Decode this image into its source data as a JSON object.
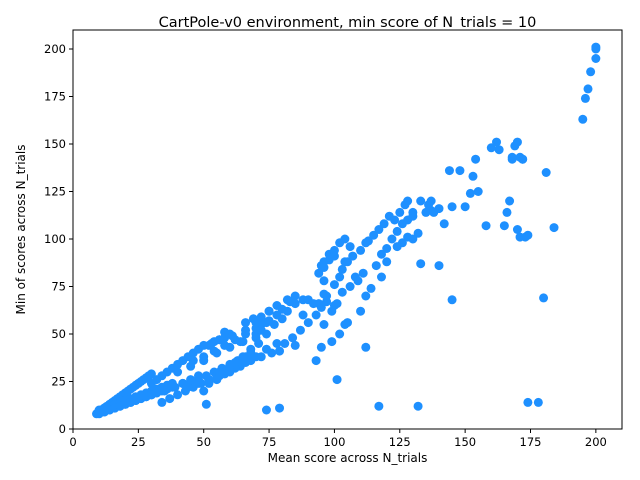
{
  "chart_data": {
    "type": "scatter",
    "title": "CartPole-v0 environment, min score of N_trials = 10",
    "xlabel": "Mean score across N_trials",
    "ylabel": "Min of scores across N_trials",
    "xlim": [
      0,
      210
    ],
    "ylim": [
      0,
      210
    ],
    "xticks": [
      0,
      25,
      50,
      75,
      100,
      125,
      150,
      175,
      200
    ],
    "yticks": [
      0,
      25,
      50,
      75,
      100,
      125,
      150,
      175,
      200
    ],
    "grid": false,
    "marker_color": "#1E90FF",
    "series": [
      {
        "x": [
          9,
          9.5,
          10,
          10.5,
          11,
          11.5,
          12,
          12.5,
          13,
          14,
          15,
          16,
          17,
          18,
          19,
          20,
          21,
          22,
          23,
          24,
          25,
          26,
          27,
          28,
          29,
          30,
          10,
          12,
          14,
          16,
          18,
          20,
          22,
          24,
          26,
          28,
          30,
          32,
          34,
          10,
          12,
          14,
          16,
          18,
          20,
          22,
          24,
          26,
          28,
          30,
          32,
          34,
          36,
          38,
          30,
          32,
          34,
          36,
          38,
          40,
          42,
          44,
          46,
          48,
          50,
          52,
          54,
          56,
          58,
          60,
          30,
          33,
          36,
          39,
          42,
          45,
          48,
          51,
          54,
          57,
          60,
          63,
          66,
          34,
          37,
          40,
          43,
          46,
          49,
          52,
          55,
          58,
          61,
          64,
          40,
          45,
          50,
          55,
          60,
          65,
          70,
          44,
          48,
          52,
          56,
          60,
          64,
          68,
          72,
          76,
          46,
          50,
          54,
          58,
          62,
          66,
          70,
          74,
          50,
          52,
          55,
          58,
          62,
          66,
          70,
          74,
          78,
          53,
          56,
          58,
          61,
          64,
          66,
          69,
          72,
          75,
          56,
          60,
          64,
          68,
          70,
          72,
          75,
          78,
          80,
          83,
          62,
          65,
          68,
          71,
          74,
          77,
          80,
          82,
          85,
          88,
          66,
          70,
          72,
          75,
          78,
          82,
          85,
          90,
          94,
          96,
          79,
          81,
          84,
          87,
          90,
          93,
          95,
          97,
          100,
          95,
          96,
          98,
          100,
          102,
          104,
          106,
          94,
          96,
          98,
          100,
          103,
          105,
          108,
          97,
          100,
          102,
          104,
          107,
          110,
          112,
          113,
          96,
          99,
          101,
          103,
          106,
          109,
          111,
          115,
          117,
          119,
          121,
          123,
          125,
          127,
          128,
          116,
          118,
          120,
          122,
          124,
          126,
          128,
          130,
          130,
          133,
          136,
          138,
          140,
          133,
          137,
          142,
          145,
          148,
          150,
          152,
          153,
          154,
          155,
          160,
          162,
          163,
          165,
          166,
          168,
          169,
          170,
          171,
          172,
          167,
          168,
          170,
          171,
          172,
          173,
          174,
          137,
          144,
          158,
          178,
          195,
          196,
          197,
          198,
          200,
          200,
          200,
          180,
          181,
          184,
          126,
          130,
          132,
          135,
          140,
          145,
          104,
          110,
          112,
          114,
          118,
          120,
          124,
          128,
          93,
          95,
          99,
          102,
          105,
          85,
          88,
          92,
          96,
          101,
          112,
          117,
          132,
          174,
          74,
          79,
          51,
          12,
          14,
          16,
          18,
          20,
          22,
          24,
          26,
          28,
          30,
          32,
          35,
          38,
          42,
          45,
          48
        ],
        "y": [
          8,
          8.5,
          9,
          9.5,
          10,
          10.5,
          11,
          11.5,
          12,
          13,
          14,
          15,
          16,
          17,
          18,
          19,
          20,
          21,
          22,
          23,
          24,
          25,
          26,
          27,
          28,
          29,
          8,
          9,
          10,
          11,
          12,
          13,
          14,
          15,
          16,
          17,
          18,
          19,
          20,
          10,
          11,
          12,
          13,
          14,
          15,
          16,
          17,
          18,
          19,
          20,
          21,
          22,
          23,
          24,
          24,
          26,
          28,
          30,
          32,
          34,
          36,
          38,
          40,
          42,
          44,
          44,
          46,
          47,
          48,
          50,
          18,
          20,
          21,
          22,
          24,
          25,
          26,
          28,
          30,
          32,
          34,
          36,
          38,
          14,
          16,
          18,
          20,
          22,
          24,
          26,
          28,
          30,
          32,
          34,
          30,
          33,
          36,
          40,
          43,
          46,
          50,
          22,
          24,
          26,
          28,
          30,
          33,
          36,
          38,
          40,
          36,
          38,
          41,
          44,
          47,
          50,
          53,
          56,
          20,
          24,
          26,
          29,
          32,
          35,
          38,
          42,
          45,
          45,
          47,
          51,
          49,
          46,
          56,
          58,
          55,
          62,
          30,
          33,
          36,
          40,
          48,
          52,
          57,
          60,
          63,
          67,
          35,
          38,
          42,
          45,
          50,
          55,
          58,
          62,
          66,
          68,
          52,
          56,
          59,
          62,
          65,
          68,
          70,
          68,
          66,
          71,
          41,
          45,
          48,
          52,
          56,
          60,
          64,
          67,
          65,
          86,
          88,
          92,
          94,
          98,
          100,
          96,
          82,
          85,
          89,
          91,
          84,
          88,
          80,
          70,
          76,
          80,
          88,
          91,
          94,
          98,
          99,
          55,
          62,
          66,
          72,
          75,
          78,
          82,
          102,
          105,
          108,
          112,
          110,
          114,
          118,
          120,
          86,
          92,
          95,
          100,
          104,
          108,
          110,
          114,
          112,
          120,
          118,
          114,
          116,
          87,
          120,
          108,
          117,
          136,
          117,
          124,
          133,
          142,
          125,
          148,
          151,
          147,
          107,
          114,
          142,
          149,
          151,
          143,
          142,
          120,
          143,
          105,
          101,
          142,
          101,
          102,
          115,
          136,
          107,
          14,
          163,
          174,
          179,
          188,
          195,
          200,
          201,
          69,
          135,
          106,
          98,
          100,
          103,
          114,
          86,
          68,
          55,
          62,
          70,
          74,
          80,
          88,
          96,
          101,
          36,
          43,
          46,
          50,
          56,
          44,
          60,
          66,
          78,
          26,
          43,
          12,
          12,
          14,
          10,
          11,
          13,
          9,
          10,
          11,
          12,
          13,
          14,
          15,
          16,
          17,
          18,
          19,
          20,
          22,
          24,
          26,
          28
        ]
      }
    ]
  }
}
